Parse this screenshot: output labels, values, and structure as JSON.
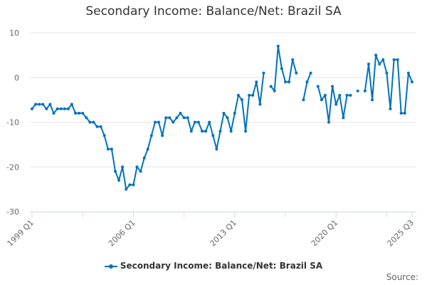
{
  "title": "Secondary Income: Balance/Net: Brazil SA",
  "legend": {
    "label": "Secondary Income: Balance/Net: Brazil SA",
    "color": "#0072bc"
  },
  "source_label": "Source:",
  "colors": {
    "series": "#0072bc",
    "grid": "#e6e6e6",
    "axis": "#ccd6eb",
    "text": "#333333"
  },
  "chart_data": {
    "type": "line",
    "title": "Secondary Income: Balance/Net: Brazil SA",
    "xlabel": "",
    "ylabel": "",
    "ylim": [
      -30,
      10
    ],
    "yticks": [
      10,
      0,
      -10,
      -20,
      -30
    ],
    "xtick_labels": [
      "1999 Q1",
      "2006 Q1",
      "2013 Q1",
      "2020 Q1",
      "2025 Q3"
    ],
    "grid": true,
    "legend_position": "bottom",
    "x_start": "1999 Q1",
    "x_end": "2025 Q3",
    "frequency": "quarterly",
    "series": [
      {
        "name": "Secondary Income: Balance/Net: Brazil SA",
        "values": [
          -7,
          -6,
          -6,
          -6,
          -7,
          -6,
          -8,
          -7,
          -7,
          -7,
          -7,
          -6,
          -8,
          -8,
          -8,
          -9,
          -10,
          -10,
          -11,
          -11,
          -13,
          -16,
          -16,
          -21,
          -23,
          -20,
          -25,
          -24,
          -24,
          -20,
          -21,
          -18,
          -16,
          -13,
          -10,
          -10,
          -13,
          -9,
          -9,
          -10,
          -9,
          -8,
          -9,
          -9,
          -12,
          -10,
          -10,
          -12,
          -12,
          -10,
          -13,
          -16,
          -12,
          -8,
          -9,
          -12,
          -8,
          -4,
          -5,
          -12,
          -4,
          -4,
          -1,
          -6,
          1,
          null,
          -2,
          -3,
          7,
          2,
          -1,
          -1,
          4,
          1,
          null,
          -5,
          -1,
          1,
          null,
          -2,
          -5,
          -4,
          -10,
          -2,
          -6,
          -4,
          -9,
          -4,
          -4,
          null,
          -3,
          null,
          -3,
          3,
          -5,
          5,
          3,
          4,
          1,
          -7,
          4,
          4,
          -8,
          -8,
          1,
          -1
        ]
      }
    ]
  }
}
